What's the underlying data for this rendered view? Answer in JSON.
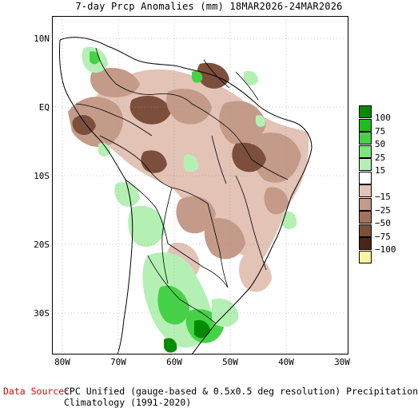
{
  "title": "7-day Prcp Anomalies (mm) 18MAR2026-24MAR2026",
  "map": {
    "lat_ticks": [
      "10N",
      "EQ",
      "10S",
      "20S",
      "30S"
    ],
    "lon_ticks": [
      "80W",
      "70W",
      "60W",
      "50W",
      "40W",
      "30W"
    ]
  },
  "legend": {
    "items": [
      {
        "label": "100",
        "color": "#008c00"
      },
      {
        "label": "75",
        "color": "#1ebe1e"
      },
      {
        "label": "50",
        "color": "#46d246"
      },
      {
        "label": "25",
        "color": "#7ce67c"
      },
      {
        "label": "15",
        "color": "#b4f0b4"
      },
      {
        "label": "",
        "color": "#ffffff"
      },
      {
        "label": "−15",
        "color": "#e2c3b6"
      },
      {
        "label": "−25",
        "color": "#c49a88"
      },
      {
        "label": "−50",
        "color": "#a0735f"
      },
      {
        "label": "−75",
        "color": "#7c4f3c"
      },
      {
        "label": "−100",
        "color": "#4a2417"
      },
      {
        "label": "",
        "color": "#fff5a0"
      }
    ]
  },
  "footer": {
    "source_label": "Data Source:",
    "source_text": "CPC Unified (gauge-based & 0.5x0.5 deg resolution) Precipitation Analysis",
    "climatology": "Climatology (1991-2020)"
  },
  "colors": {
    "wet_light": "#b4f0b4",
    "wet_mid": "#7ce67c",
    "wet_strong": "#46d246",
    "wet_heavy": "#1ebe1e",
    "wet_extreme": "#008c00",
    "dry_light": "#e2c3b6",
    "dry_mid": "#c49a88",
    "dry_strong": "#a0735f",
    "dry_heavy": "#7c4f3c",
    "source_red": "#e00000"
  }
}
